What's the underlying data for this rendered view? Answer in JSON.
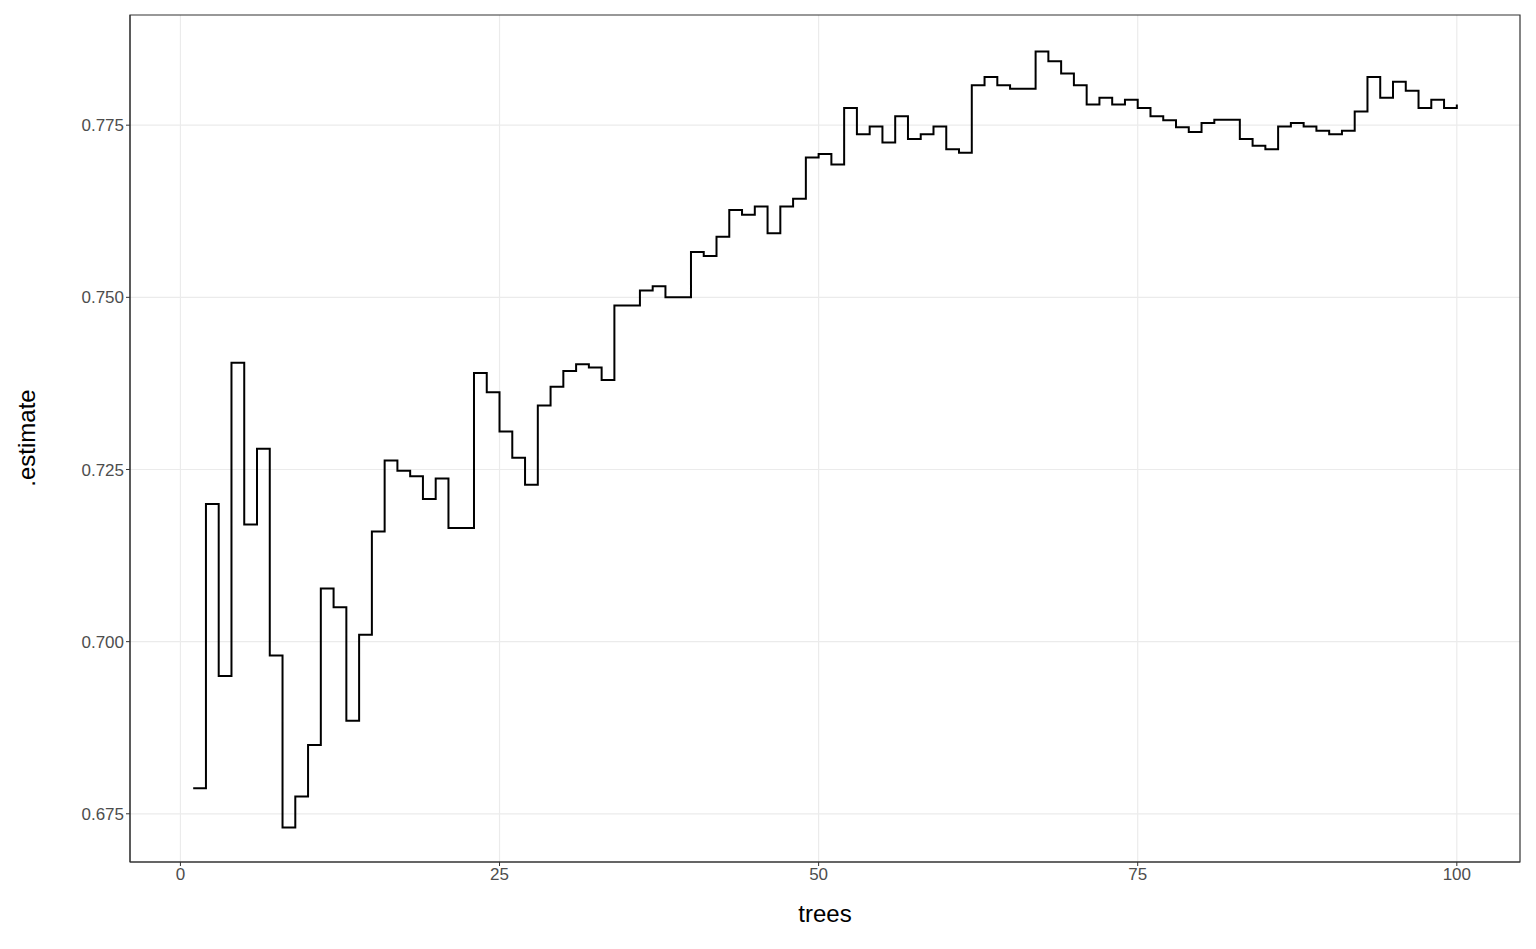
{
  "chart_data": {
    "type": "line",
    "x_label": "trees",
    "y_label": ".estimate",
    "line_style": "step",
    "color": "#000000",
    "grid": true,
    "x": [
      1,
      2,
      3,
      4,
      5,
      6,
      7,
      8,
      9,
      10,
      11,
      12,
      13,
      14,
      15,
      16,
      17,
      18,
      19,
      20,
      21,
      22,
      23,
      24,
      25,
      26,
      27,
      28,
      29,
      30,
      31,
      32,
      33,
      34,
      35,
      36,
      37,
      38,
      39,
      40,
      41,
      42,
      43,
      44,
      45,
      46,
      47,
      48,
      49,
      50,
      51,
      52,
      53,
      54,
      55,
      56,
      57,
      58,
      59,
      60,
      61,
      62,
      63,
      64,
      65,
      66,
      67,
      68,
      69,
      70,
      71,
      72,
      73,
      74,
      75,
      76,
      77,
      78,
      79,
      80,
      81,
      82,
      83,
      84,
      85,
      86,
      87,
      88,
      89,
      90,
      91,
      92,
      93,
      94,
      95,
      96,
      97,
      98,
      99,
      100
    ],
    "values": [
      0.6787,
      0.72,
      0.695,
      0.7405,
      0.717,
      0.728,
      0.698,
      0.673,
      0.6775,
      0.685,
      0.7077,
      0.705,
      0.6885,
      0.701,
      0.716,
      0.7263,
      0.7248,
      0.724,
      0.7207,
      0.7237,
      0.7165,
      0.7165,
      0.739,
      0.7362,
      0.7305,
      0.7267,
      0.7228,
      0.7343,
      0.737,
      0.7393,
      0.7403,
      0.7398,
      0.738,
      0.7488,
      0.7488,
      0.751,
      0.7516,
      0.75,
      0.75,
      0.7566,
      0.756,
      0.7588,
      0.7627,
      0.762,
      0.7632,
      0.7593,
      0.7632,
      0.7643,
      0.7703,
      0.7708,
      0.7693,
      0.7775,
      0.7737,
      0.7748,
      0.7725,
      0.7763,
      0.773,
      0.7737,
      0.7748,
      0.7715,
      0.771,
      0.7808,
      0.782,
      0.7808,
      0.7803,
      0.7803,
      0.7857,
      0.7843,
      0.7825,
      0.7808,
      0.778,
      0.779,
      0.778,
      0.7787,
      0.7775,
      0.7763,
      0.7757,
      0.7747,
      0.774,
      0.7753,
      0.7758,
      0.7758,
      0.773,
      0.772,
      0.7715,
      0.7748,
      0.7753,
      0.7748,
      0.7742,
      0.7737,
      0.7742,
      0.777,
      0.782,
      0.779,
      0.7813,
      0.78,
      0.7775,
      0.7787,
      0.7775,
      0.778
    ],
    "xlim": [
      -3.95,
      104.95
    ],
    "xticks": [
      0,
      25,
      50,
      75,
      100
    ],
    "ylim": [
      0.668,
      0.791
    ],
    "yticks": [
      0.675,
      {
        "value": 0.7,
        "label": "0.700"
      },
      0.725,
      {
        "value": 0.75,
        "label": "0.750"
      },
      0.775
    ]
  }
}
